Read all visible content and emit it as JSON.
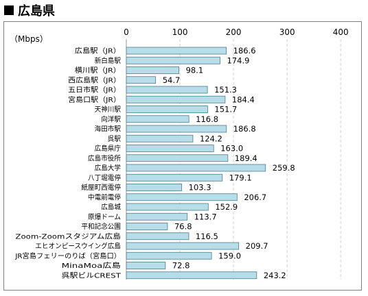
{
  "heading": {
    "marker": "■",
    "title": "広島県"
  },
  "chart_data": {
    "type": "bar",
    "orientation": "horizontal",
    "unit_label": "（Mbps）",
    "xlim": [
      0,
      400
    ],
    "x_ticks": [
      0,
      100,
      200,
      300,
      400
    ],
    "grid": true,
    "bar_color": "#b7dde8",
    "bar_edge_color": "#4a7c8c",
    "categories": [
      "広島駅（JR）",
      "新白島駅",
      "横川駅（JR）",
      "西広島駅（JR）",
      "五日市駅（JR）",
      "宮島口駅（JR）",
      "天神川駅",
      "向洋駅",
      "海田市駅",
      "呉駅",
      "広島県庁",
      "広島市役所",
      "広島大学",
      "八丁堀電停",
      "紙屋町西電停",
      "中電前電停",
      "広島城",
      "原爆ドーム",
      "平和記念公園",
      "Zoom-Zoomスタジアム広島",
      "エヒオンピースウイング広島",
      "JR宮島フェリーのりば（宮島口）",
      "MinaMoa広島",
      "呉駅ビルCREST"
    ],
    "values": [
      186.6,
      174.9,
      98.1,
      54.7,
      151.3,
      184.4,
      151.7,
      116.8,
      186.8,
      124.2,
      163.0,
      189.4,
      259.8,
      179.1,
      103.3,
      206.7,
      152.9,
      113.7,
      76.8,
      116.5,
      209.7,
      159.0,
      72.8,
      243.2
    ],
    "value_labels": [
      "186.6",
      "174.9",
      "98.1",
      "54.7",
      "151.3",
      "184.4",
      "151.7",
      "116.8",
      "186.8",
      "124.2",
      "163.0",
      "189.4",
      "259.8",
      "179.1",
      "103.3",
      "206.7",
      "152.9",
      "113.7",
      "76.8",
      "116.5",
      "209.7",
      "159.0",
      "72.8",
      "243.2"
    ]
  }
}
